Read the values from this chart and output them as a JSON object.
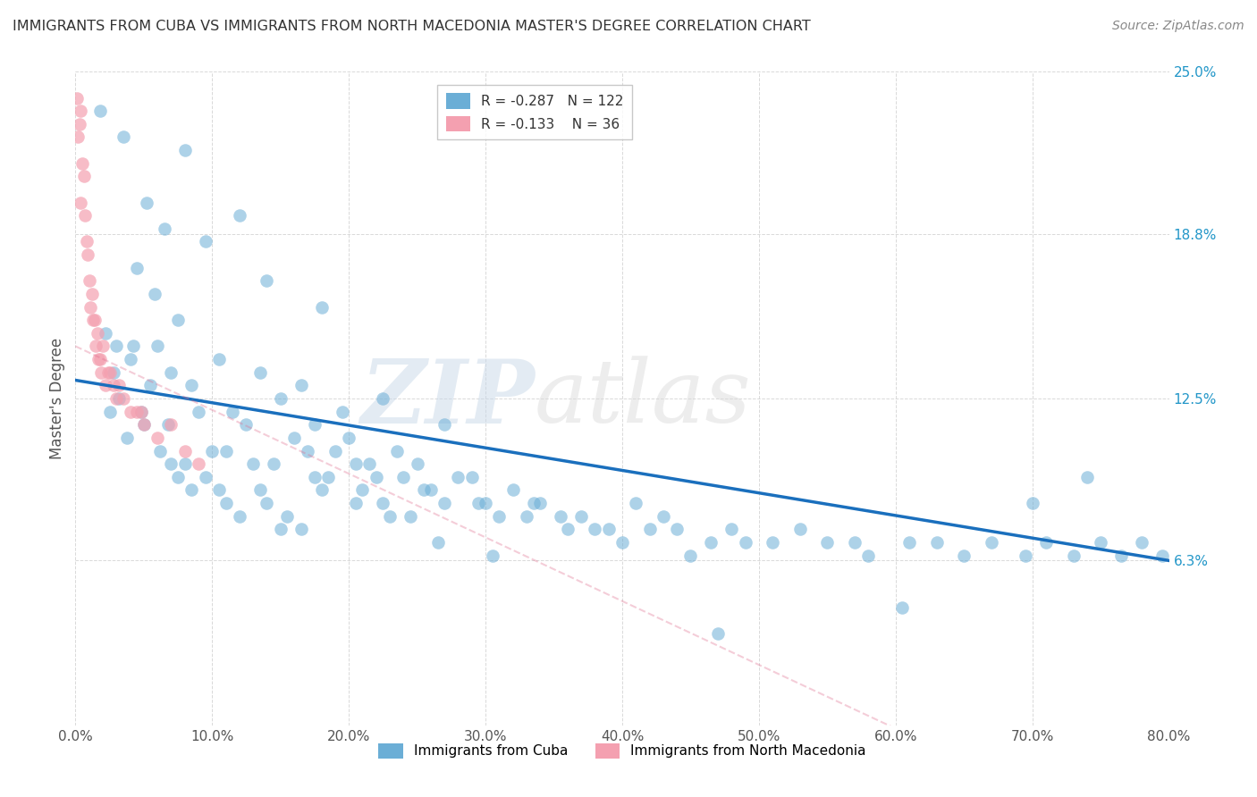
{
  "title": "IMMIGRANTS FROM CUBA VS IMMIGRANTS FROM NORTH MACEDONIA MASTER'S DEGREE CORRELATION CHART",
  "source": "Source: ZipAtlas.com",
  "ylabel": "Master's Degree",
  "legend_label_1": "Immigrants from Cuba",
  "legend_label_2": "Immigrants from North Macedonia",
  "R1": -0.287,
  "N1": 122,
  "R2": -0.133,
  "N2": 36,
  "color1": "#6baed6",
  "color2": "#f4a0b0",
  "line_color1": "#1a6fbd",
  "line_color2": "#e07090",
  "xlim": [
    0.0,
    80.0
  ],
  "ylim": [
    0.0,
    25.0
  ],
  "yticks": [
    6.3,
    12.5,
    18.8,
    25.0
  ],
  "ytick_labels": [
    "6.3%",
    "12.5%",
    "18.8%",
    "25.0%"
  ],
  "xticks": [
    0.0,
    10.0,
    20.0,
    30.0,
    40.0,
    50.0,
    60.0,
    70.0,
    80.0
  ],
  "xtick_labels": [
    "0.0%",
    "10.0%",
    "20.0%",
    "30.0%",
    "40.0%",
    "50.0%",
    "60.0%",
    "70.0%",
    "80.0%"
  ],
  "watermark_zip": "ZIP",
  "watermark_atlas": "atlas",
  "background_color": "#ffffff",
  "grid_color": "#d0d0d0",
  "cuba_x": [
    1.8,
    3.5,
    5.2,
    8.0,
    12.0,
    4.5,
    6.5,
    9.5,
    14.0,
    18.0,
    2.2,
    3.0,
    4.0,
    5.8,
    7.5,
    10.5,
    13.5,
    16.5,
    19.5,
    22.5,
    2.8,
    4.2,
    6.0,
    8.5,
    11.5,
    15.0,
    17.5,
    20.0,
    23.5,
    27.0,
    3.2,
    5.5,
    7.0,
    9.0,
    12.5,
    16.0,
    19.0,
    21.5,
    25.0,
    29.0,
    2.5,
    4.8,
    6.8,
    10.0,
    13.0,
    17.0,
    20.5,
    24.0,
    28.0,
    32.0,
    3.8,
    5.0,
    8.0,
    11.0,
    14.5,
    18.5,
    22.0,
    26.0,
    30.0,
    34.0,
    6.2,
    9.5,
    13.5,
    17.5,
    21.0,
    25.5,
    29.5,
    33.5,
    37.0,
    41.0,
    7.0,
    10.5,
    14.0,
    18.0,
    22.5,
    27.0,
    31.0,
    35.5,
    39.0,
    43.0,
    7.5,
    11.0,
    15.5,
    20.5,
    24.5,
    33.0,
    38.0,
    44.0,
    48.0,
    53.0,
    8.5,
    12.0,
    16.5,
    23.0,
    36.0,
    42.0,
    46.5,
    51.0,
    57.0,
    61.0,
    15.0,
    26.5,
    40.0,
    49.0,
    55.0,
    63.0,
    67.0,
    71.0,
    75.0,
    78.0,
    30.5,
    45.0,
    58.0,
    65.0,
    69.5,
    73.0,
    76.5,
    79.5,
    47.0,
    60.5,
    70.0,
    74.0
  ],
  "cuba_y": [
    23.5,
    22.5,
    20.0,
    22.0,
    19.5,
    17.5,
    19.0,
    18.5,
    17.0,
    16.0,
    15.0,
    14.5,
    14.0,
    16.5,
    15.5,
    14.0,
    13.5,
    13.0,
    12.0,
    12.5,
    13.5,
    14.5,
    14.5,
    13.0,
    12.0,
    12.5,
    11.5,
    11.0,
    10.5,
    11.5,
    12.5,
    13.0,
    13.5,
    12.0,
    11.5,
    11.0,
    10.5,
    10.0,
    10.0,
    9.5,
    12.0,
    12.0,
    11.5,
    10.5,
    10.0,
    10.5,
    10.0,
    9.5,
    9.5,
    9.0,
    11.0,
    11.5,
    10.0,
    10.5,
    10.0,
    9.5,
    9.5,
    9.0,
    8.5,
    8.5,
    10.5,
    9.5,
    9.0,
    9.5,
    9.0,
    9.0,
    8.5,
    8.5,
    8.0,
    8.5,
    10.0,
    9.0,
    8.5,
    9.0,
    8.5,
    8.5,
    8.0,
    8.0,
    7.5,
    8.0,
    9.5,
    8.5,
    8.0,
    8.5,
    8.0,
    8.0,
    7.5,
    7.5,
    7.5,
    7.5,
    9.0,
    8.0,
    7.5,
    8.0,
    7.5,
    7.5,
    7.0,
    7.0,
    7.0,
    7.0,
    7.5,
    7.0,
    7.0,
    7.0,
    7.0,
    7.0,
    7.0,
    7.0,
    7.0,
    7.0,
    6.5,
    6.5,
    6.5,
    6.5,
    6.5,
    6.5,
    6.5,
    6.5,
    3.5,
    4.5,
    8.5,
    9.5
  ],
  "mac_x": [
    0.2,
    0.4,
    0.6,
    0.8,
    1.0,
    1.2,
    1.4,
    1.6,
    1.8,
    2.0,
    0.3,
    0.5,
    0.7,
    0.9,
    1.1,
    1.3,
    1.5,
    1.7,
    1.9,
    2.2,
    2.5,
    2.8,
    3.0,
    3.5,
    4.0,
    4.5,
    5.0,
    6.0,
    7.0,
    8.0,
    0.1,
    0.4,
    2.4,
    3.2,
    4.8,
    9.0
  ],
  "mac_y": [
    22.5,
    20.0,
    21.0,
    18.5,
    17.0,
    16.5,
    15.5,
    15.0,
    14.0,
    14.5,
    23.0,
    21.5,
    19.5,
    18.0,
    16.0,
    15.5,
    14.5,
    14.0,
    13.5,
    13.0,
    13.5,
    13.0,
    12.5,
    12.5,
    12.0,
    12.0,
    11.5,
    11.0,
    11.5,
    10.5,
    24.0,
    23.5,
    13.5,
    13.0,
    12.0,
    10.0
  ]
}
